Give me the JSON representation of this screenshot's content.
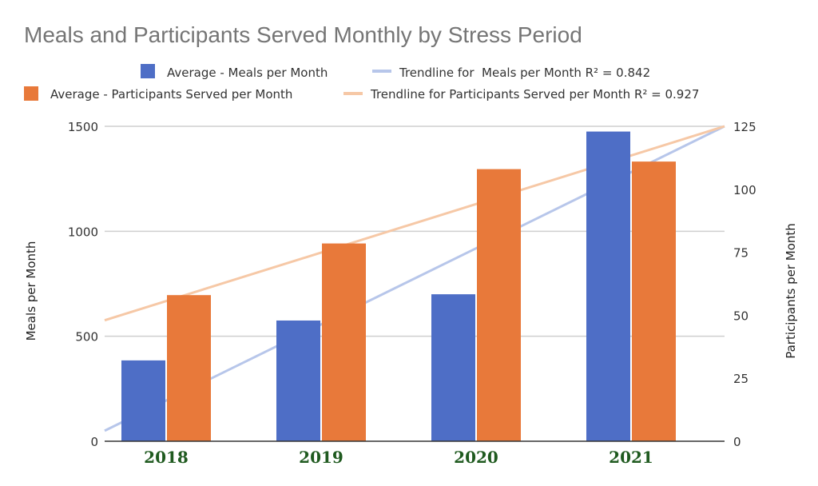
{
  "chart_data": {
    "type": "bar",
    "title": "Meals and Participants Served Monthly by Stress Period",
    "categories": [
      "2018",
      "2019",
      "2020",
      "2021"
    ],
    "series": [
      {
        "name": "Average - Meals per Month",
        "axis": "left",
        "color": "#4e6ec6",
        "values": [
          385,
          575,
          700,
          1475
        ]
      },
      {
        "name": "Average - Participants Served per Month",
        "axis": "right",
        "color": "#e8793a",
        "values": [
          58,
          78.5,
          108,
          111
        ]
      }
    ],
    "trendlines": [
      {
        "name": "Trendline for  Meals per Month R² = 0.842",
        "axis": "left",
        "color": "#b7c6ea",
        "start": 50,
        "end": 1500
      },
      {
        "name": "Trendline for Participants Served per Month R² = 0.927",
        "axis": "right",
        "color": "#f6c8a6",
        "start": 48,
        "end": 125
      }
    ],
    "ylabel": "Meals per Month",
    "y2label": "Participants per Month",
    "ylim": [
      0,
      1500
    ],
    "y2lim": [
      0,
      125
    ],
    "yticks": [
      0,
      500,
      1000,
      1500
    ],
    "y2ticks": [
      0,
      25,
      50,
      75,
      100,
      125
    ],
    "grid": true,
    "legend_position": "top"
  }
}
